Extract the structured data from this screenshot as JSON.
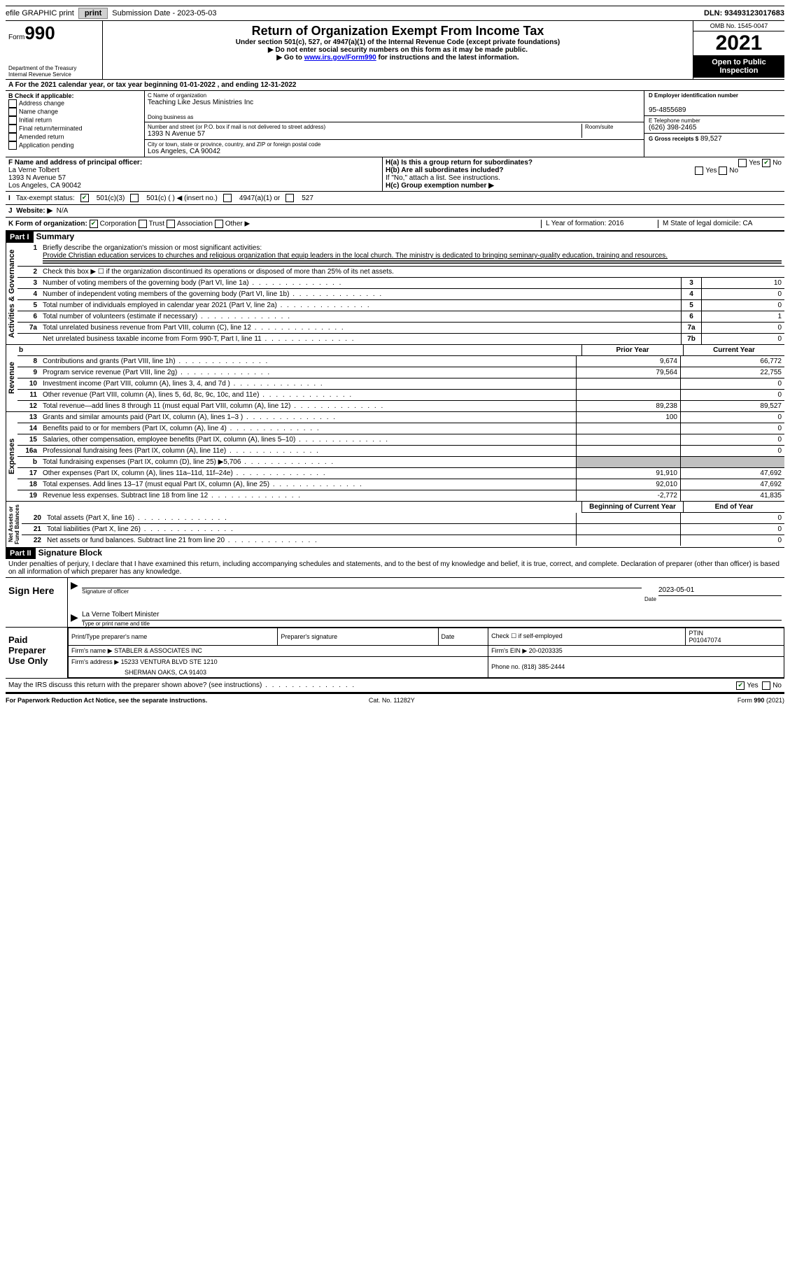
{
  "topbar": {
    "efile": "efile GRAPHIC print",
    "submission": "Submission Date - 2023-05-03",
    "dln": "DLN: 93493123017683"
  },
  "header": {
    "form": "Form",
    "form_no": "990",
    "title": "Return of Organization Exempt From Income Tax",
    "sub1": "Under section 501(c), 527, or 4947(a)(1) of the Internal Revenue Code (except private foundations)",
    "sub2": "▶ Do not enter social security numbers on this form as it may be made public.",
    "sub3_pre": "▶ Go to ",
    "sub3_link": "www.irs.gov/Form990",
    "sub3_post": " for instructions and the latest information.",
    "dept": "Department of the Treasury",
    "irs": "Internal Revenue Service",
    "omb": "OMB No. 1545-0047",
    "year": "2021",
    "open": "Open to Public Inspection"
  },
  "rowA": {
    "text": "A For the 2021 calendar year, or tax year beginning 01-01-2022    , and ending 12-31-2022"
  },
  "colB": {
    "label": "B Check if applicable:",
    "items": [
      "Address change",
      "Name change",
      "Initial return",
      "Final return/terminated",
      "Amended return",
      "Application pending"
    ]
  },
  "colC": {
    "name_label": "C Name of organization",
    "name": "Teaching Like Jesus Ministries Inc",
    "dba_label": "Doing business as",
    "dba": "",
    "addr_label": "Number and street (or P.O. box if mail is not delivered to street address)",
    "addr": "1393 N Avenue 57",
    "room": "Room/suite",
    "city_label": "City or town, state or province, country, and ZIP or foreign postal code",
    "city": "Los Angeles, CA  90042"
  },
  "colD": {
    "ein_label": "D Employer identification number",
    "ein": "95-4855689",
    "tel_label": "E Telephone number",
    "tel": "(626) 398-2465",
    "gross_label": "G Gross receipts $",
    "gross": "89,527"
  },
  "fgh": {
    "f_label": "F Name and address of principal officer:",
    "f_name": "La Verne Tolbert",
    "f_addr1": "1393 N Avenue 57",
    "f_addr2": "Los Angeles, CA  90042",
    "ha": "H(a)  Is this a group return for subordinates?",
    "ha_yes": "Yes",
    "ha_no": "No",
    "hb": "H(b)  Are all subordinates included?",
    "hb_note": "If \"No,\" attach a list. See instructions.",
    "hc": "H(c)  Group exemption number ▶"
  },
  "tax": {
    "label": "Tax-exempt status:",
    "o1": "501(c)(3)",
    "o2": "501(c) (  ) ◀ (insert no.)",
    "o3": "4947(a)(1) or",
    "o4": "527"
  },
  "web": {
    "label": "Website: ▶",
    "val": "N/A"
  },
  "rowK": {
    "label": "K Form of organization:",
    "o1": "Corporation",
    "o2": "Trust",
    "o3": "Association",
    "o4": "Other ▶",
    "l": "L Year of formation: 2016",
    "m": "M State of legal domicile: CA"
  },
  "part1": {
    "hdr": "Part I",
    "title": "Summary"
  },
  "summary": {
    "l1_label": "Briefly describe the organization's mission or most significant activities:",
    "l1_text": "Provide Christian education services to churches and religious organization that equip leaders in the local church. The ministry is dedicated to bringing seminary-quality education, training and resources.",
    "l2": "Check this box ▶ ☐  if the organization discontinued its operations or disposed of more than 25% of its net assets.",
    "lines_gov": [
      {
        "n": "3",
        "t": "Number of voting members of the governing body (Part VI, line 1a)",
        "box": "3",
        "v": "10"
      },
      {
        "n": "4",
        "t": "Number of independent voting members of the governing body (Part VI, line 1b)",
        "box": "4",
        "v": "0"
      },
      {
        "n": "5",
        "t": "Total number of individuals employed in calendar year 2021 (Part V, line 2a)",
        "box": "5",
        "v": "0"
      },
      {
        "n": "6",
        "t": "Total number of volunteers (estimate if necessary)",
        "box": "6",
        "v": "1"
      },
      {
        "n": "7a",
        "t": "Total unrelated business revenue from Part VIII, column (C), line 12",
        "box": "7a",
        "v": "0"
      },
      {
        "n": "",
        "t": "Net unrelated business taxable income from Form 990-T, Part I, line 11",
        "box": "7b",
        "v": "0"
      }
    ],
    "prior_label": "Prior Year",
    "curr_label": "Current Year",
    "lines_rev": [
      {
        "n": "8",
        "t": "Contributions and grants (Part VIII, line 1h)",
        "p": "9,674",
        "c": "66,772"
      },
      {
        "n": "9",
        "t": "Program service revenue (Part VIII, line 2g)",
        "p": "79,564",
        "c": "22,755"
      },
      {
        "n": "10",
        "t": "Investment income (Part VIII, column (A), lines 3, 4, and 7d )",
        "p": "",
        "c": "0"
      },
      {
        "n": "11",
        "t": "Other revenue (Part VIII, column (A), lines 5, 6d, 8c, 9c, 10c, and 11e)",
        "p": "",
        "c": "0"
      },
      {
        "n": "12",
        "t": "Total revenue—add lines 8 through 11 (must equal Part VIII, column (A), line 12)",
        "p": "89,238",
        "c": "89,527"
      }
    ],
    "lines_exp": [
      {
        "n": "13",
        "t": "Grants and similar amounts paid (Part IX, column (A), lines 1–3 )",
        "p": "100",
        "c": "0"
      },
      {
        "n": "14",
        "t": "Benefits paid to or for members (Part IX, column (A), line 4)",
        "p": "",
        "c": "0"
      },
      {
        "n": "15",
        "t": "Salaries, other compensation, employee benefits (Part IX, column (A), lines 5–10)",
        "p": "",
        "c": "0"
      },
      {
        "n": "16a",
        "t": "Professional fundraising fees (Part IX, column (A), line 11e)",
        "p": "",
        "c": "0"
      },
      {
        "n": "b",
        "t": "Total fundraising expenses (Part IX, column (D), line 25) ▶5,706",
        "p": "shaded",
        "c": "shaded"
      },
      {
        "n": "17",
        "t": "Other expenses (Part IX, column (A), lines 11a–11d, 11f–24e)",
        "p": "91,910",
        "c": "47,692"
      },
      {
        "n": "18",
        "t": "Total expenses. Add lines 13–17 (must equal Part IX, column (A), line 25)",
        "p": "92,010",
        "c": "47,692"
      },
      {
        "n": "19",
        "t": "Revenue less expenses. Subtract line 18 from line 12",
        "p": "-2,772",
        "c": "41,835"
      }
    ],
    "beg_label": "Beginning of Current Year",
    "end_label": "End of Year",
    "lines_net": [
      {
        "n": "20",
        "t": "Total assets (Part X, line 16)",
        "p": "",
        "c": "0"
      },
      {
        "n": "21",
        "t": "Total liabilities (Part X, line 26)",
        "p": "",
        "c": "0"
      },
      {
        "n": "22",
        "t": "Net assets or fund balances. Subtract line 21 from line 20",
        "p": "",
        "c": "0"
      }
    ]
  },
  "part2": {
    "hdr": "Part II",
    "title": "Signature Block",
    "decl": "Under penalties of perjury, I declare that I have examined this return, including accompanying schedules and statements, and to the best of my knowledge and belief, it is true, correct, and complete. Declaration of preparer (other than officer) is based on all information of which preparer has any knowledge."
  },
  "sign": {
    "left": "Sign Here",
    "sig_label": "Signature of officer",
    "date": "2023-05-01",
    "date_label": "Date",
    "name": "La Verne Tolbert Minister",
    "name_label": "Type or print name and title"
  },
  "paid": {
    "left": "Paid Preparer Use Only",
    "h1": "Print/Type preparer's name",
    "h2": "Preparer's signature",
    "h3": "Date",
    "h4": "Check ☐ if self-employed",
    "h5": "PTIN",
    "ptin": "P01047074",
    "firm_label": "Firm's name   ▶",
    "firm": "STABLER & ASSOCIATES INC",
    "ein_label": "Firm's EIN ▶",
    "ein": "20-0203335",
    "addr_label": "Firm's address ▶",
    "addr1": "15233 VENTURA BLVD STE 1210",
    "addr2": "SHERMAN OAKS, CA  91403",
    "phone_label": "Phone no.",
    "phone": "(818) 385-2444"
  },
  "discuss": {
    "text": "May the IRS discuss this return with the preparer shown above? (see instructions)",
    "yes": "Yes",
    "no": "No"
  },
  "footer": {
    "left": "For Paperwork Reduction Act Notice, see the separate instructions.",
    "cat": "Cat. No. 11282Y",
    "right": "Form 990 (2021)"
  }
}
